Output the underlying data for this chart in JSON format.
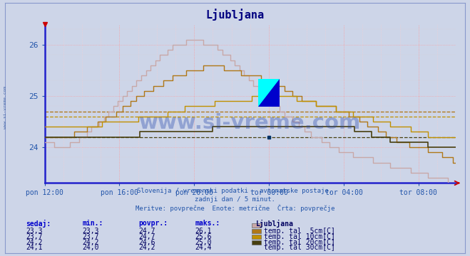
{
  "title": "Ljubljana",
  "title_color": "#000080",
  "bg_color": "#cdd5e8",
  "subtitle1": "Slovenija / vremenski podatki - avtomatske postaje.",
  "subtitle2": "zadnji dan / 5 minut.",
  "subtitle3": "Meritve: povprečne  Enote: metrične  Črta: povprečje",
  "xlabel_ticks": [
    "pon 12:00",
    "pon 16:00",
    "pon 20:00",
    "tor 00:00",
    "tor 04:00",
    "tor 08:00"
  ],
  "x_tick_minutes": [
    0,
    240,
    480,
    720,
    960,
    1200
  ],
  "total_minutes": 1320,
  "ylim": [
    23.3,
    26.4
  ],
  "yticks": [
    24,
    25,
    26
  ],
  "grid_v_color": "#ff9999",
  "grid_h_color": "#ff9999",
  "axis_color": "#2222cc",
  "tick_label_color": "#2255aa",
  "series": [
    {
      "label": "temp. tal  5cm[C]",
      "color": "#c8a8a8",
      "avg": 24.7,
      "min_val": 23.3,
      "max_val": 26.1,
      "current": 23.3
    },
    {
      "label": "temp. tal 10cm[C]",
      "color": "#b07818",
      "avg": 24.7,
      "min_val": 23.7,
      "max_val": 25.6,
      "current": 23.7
    },
    {
      "label": "temp. tal 20cm[C]",
      "color": "#c09000",
      "avg": 24.6,
      "min_val": 24.2,
      "max_val": 25.0,
      "current": 24.2
    },
    {
      "label": "temp. tal 30cm[C]",
      "color": "#484010",
      "avg": 24.2,
      "min_val": 24.0,
      "max_val": 24.4,
      "current": 24.1
    }
  ],
  "table_headers": [
    "sedaj:",
    "min.:",
    "povpr.:",
    "maks.:"
  ],
  "table_data": [
    [
      "23,3",
      "23,3",
      "24,7",
      "26,1"
    ],
    [
      "23,7",
      "23,7",
      "24,7",
      "25,6"
    ],
    [
      "24,2",
      "24,2",
      "24,6",
      "25,0"
    ],
    [
      "24,1",
      "24,0",
      "24,2",
      "24,4"
    ]
  ],
  "sidebar_text": "www.si-vreme.com",
  "watermark_text": "www.si-vreme.com"
}
